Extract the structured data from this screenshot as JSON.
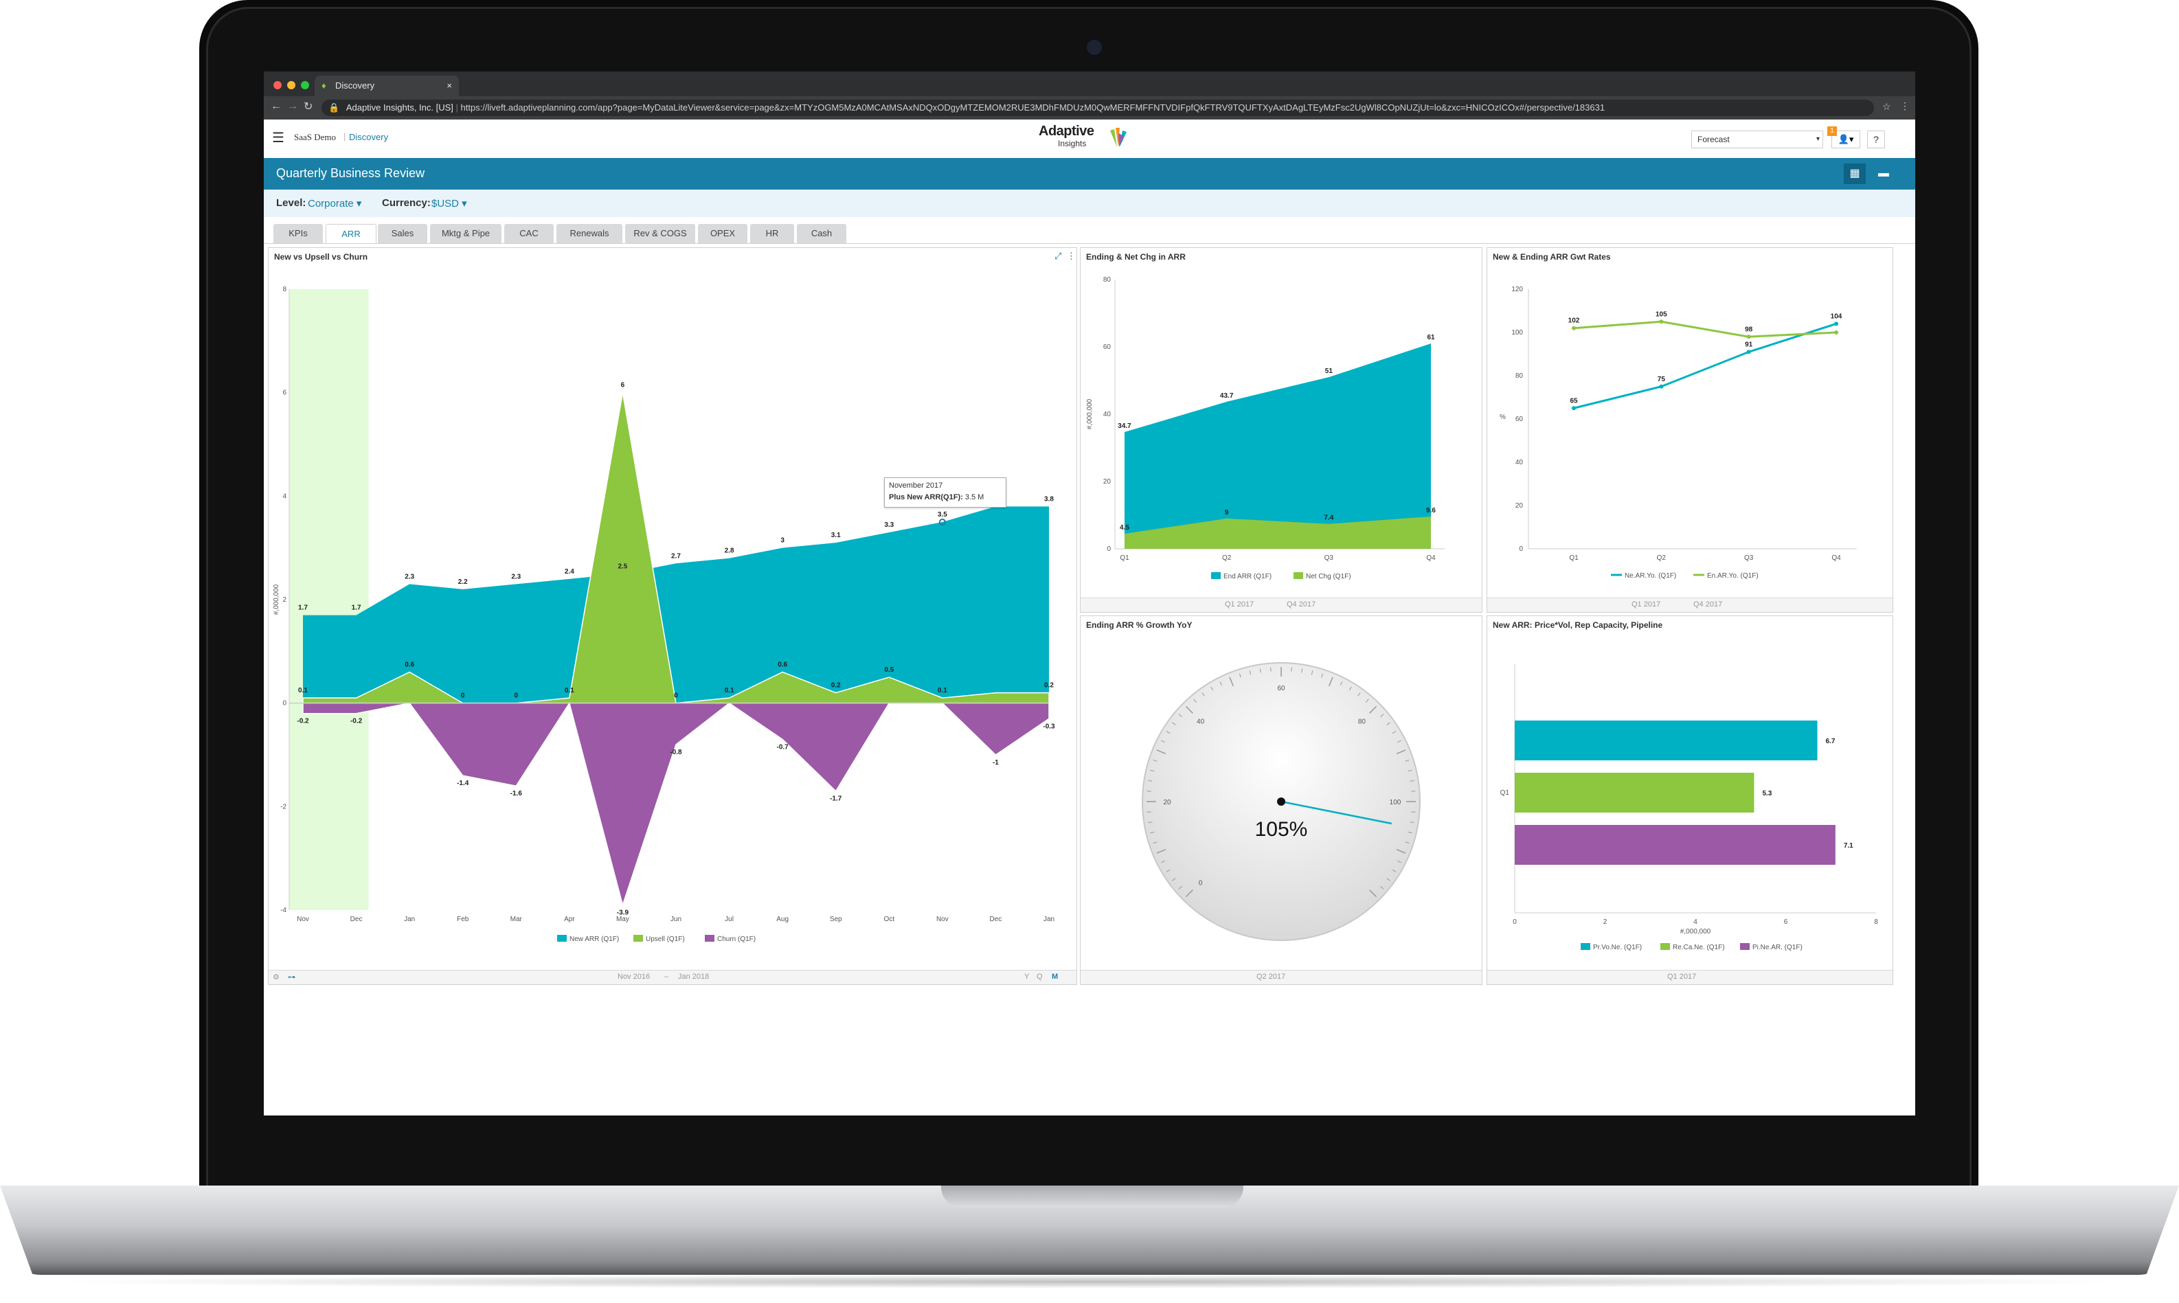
{
  "browser": {
    "tab_title": "Discovery",
    "site_label": "Adaptive Insights, Inc. [US]",
    "url": "https://liveft.adaptiveplanning.com/app?page=MyDataLiteViewer&service=page&zx=MTYzOGM5MzA0MCAtMSAxNDQxODgyMTZEMOM2RUE3MDhFMDUzM0QwMERFMFFNTVDIFpfQkFTRV9TQUFTXyAxtDAgLTEyMzFsc2UgWl8COpNUZjUt=lo&zxc=HNICOzICOx#/perspective/183631",
    "refresh_icon": "refresh-icon",
    "star_icon": "star-icon",
    "menu_icon": "kebab-icon"
  },
  "app": {
    "instance": "SaaS Demo",
    "context": "Discovery",
    "logo_line1": "Adaptive",
    "logo_line2": "Insights",
    "version_select": "Forecast",
    "notification_count": "1",
    "help_label": "?"
  },
  "report": {
    "title": "Quarterly Business Review",
    "level_label": "Level:",
    "level_value": "Corporate",
    "currency_label": "Currency:",
    "currency_value": "$USD"
  },
  "tabs": [
    {
      "label": "KPIs"
    },
    {
      "label": "ARR",
      "active": true
    },
    {
      "label": "Sales"
    },
    {
      "label": "Mktg & Pipe"
    },
    {
      "label": "CAC"
    },
    {
      "label": "Renewals"
    },
    {
      "label": "Rev & COGS"
    },
    {
      "label": "OPEX"
    },
    {
      "label": "HR"
    },
    {
      "label": "Cash"
    }
  ],
  "panels": {
    "main": {
      "title": "New vs Upsell vs Churn",
      "date_from": "Nov 2016",
      "date_to": "Jan 2018",
      "foot_icons": [
        "Y",
        "Q",
        "M"
      ],
      "tooltip_title": "November 2017",
      "tooltip_label": "Plus New ARR(Q1F):",
      "tooltip_value": "3.5 M"
    },
    "ending_net": {
      "title": "Ending & Net Chg in ARR",
      "date_from": "Q1 2017",
      "date_to": "Q4 2017"
    },
    "gwt_rates": {
      "title": "New & Ending ARR Gwt Rates",
      "date_from": "Q1 2017",
      "date_to": "Q4 2017"
    },
    "gauge": {
      "title": "Ending ARR % Growth YoY",
      "date": "Q2 2017"
    },
    "price_vol": {
      "title": "New ARR: Price*Vol, Rep Capacity, Pipeline",
      "date": "Q1 2017"
    }
  },
  "colors": {
    "teal": "#00b0c3",
    "green": "#8dc63f",
    "purple": "#9b59a6",
    "blue": "#1a7fa6"
  },
  "chart_data": [
    {
      "type": "area",
      "title": "New vs Upsell vs Churn",
      "ylabel": "#,000,000",
      "ylim": [
        -4,
        8
      ],
      "yticks": [
        "8",
        "6",
        "4",
        "2",
        "0",
        "-2",
        "-4"
      ],
      "categories": [
        "Nov",
        "Dec",
        "Jan",
        "Feb",
        "Mar",
        "Apr",
        "May",
        "Jun",
        "Jul",
        "Aug",
        "Sep",
        "Oct",
        "Nov",
        "Dec",
        "Jan"
      ],
      "series": [
        {
          "name": "New ARR (Q1F)",
          "values": [
            1.7,
            1.7,
            2.3,
            2.2,
            2.3,
            2.4,
            2.5,
            2.7,
            2.8,
            3,
            3.1,
            3.3,
            3.5,
            3.8,
            3.8
          ],
          "labels": [
            "1.7",
            "1.7",
            "2.3",
            "2.2",
            "2.3",
            "2.4",
            "2.5",
            "2.7",
            "2.8",
            "3",
            "3.1",
            "3.3",
            "3.5",
            "",
            "3.8"
          ]
        },
        {
          "name": "Upsell (Q1F)",
          "values": [
            0.1,
            0.1,
            0.6,
            0,
            0,
            0.1,
            6,
            0,
            0.1,
            0.6,
            0.2,
            0.5,
            0.1,
            0.2,
            0.2
          ],
          "labels": [
            "0.1",
            "",
            "0.6",
            "0",
            "0",
            "0.1",
            "6",
            "0",
            "0.1",
            "0.6",
            "0.2",
            "0.5",
            "0.1",
            "",
            "0.2"
          ]
        },
        {
          "name": "Churn (Q1F)",
          "values": [
            -0.2,
            -0.2,
            0,
            -1.4,
            -1.6,
            0,
            -3.9,
            -0.8,
            0,
            -0.7,
            -1.7,
            0,
            0,
            -1,
            -0.3
          ],
          "labels": [
            "-0.2",
            "-0.2",
            "",
            "-1.4",
            "-1.6",
            "",
            "-3.9",
            "-0.8",
            "",
            "-0.7",
            "-1.7",
            "",
            "",
            "-1",
            "-0.3"
          ]
        }
      ]
    },
    {
      "type": "area",
      "title": "Ending & Net Chg in ARR",
      "ylabel": "#,000,000",
      "ylim": [
        0,
        80
      ],
      "yticks": [
        "80",
        "60",
        "40",
        "20",
        "0"
      ],
      "categories": [
        "Q1",
        "Q2",
        "Q3",
        "Q4"
      ],
      "series": [
        {
          "name": "End ARR (Q1F)",
          "values": [
            34.7,
            43.7,
            51,
            61
          ],
          "labels": [
            "34.7",
            "43.7",
            "51",
            "61"
          ]
        },
        {
          "name": "Net Chg (Q1F)",
          "values": [
            4.5,
            9,
            7.4,
            9.6
          ],
          "labels": [
            "4.5",
            "9",
            "7.4",
            "9.6"
          ]
        }
      ]
    },
    {
      "type": "line",
      "title": "New & Ending ARR Gwt Rates",
      "ylabel": "%",
      "ylim": [
        0,
        120
      ],
      "yticks": [
        "120",
        "100",
        "80",
        "60",
        "40",
        "20",
        "0"
      ],
      "categories": [
        "Q1",
        "Q2",
        "Q3",
        "Q4"
      ],
      "series": [
        {
          "name": "Ne.AR.Yo. (Q1F)",
          "values": [
            65,
            75,
            91,
            104
          ],
          "labels": [
            "65",
            "75",
            "91",
            "104"
          ]
        },
        {
          "name": "En.AR.Yo. (Q1F)",
          "values": [
            102,
            105,
            98,
            100
          ],
          "labels": [
            "102",
            "105",
            "98",
            ""
          ]
        }
      ]
    },
    {
      "type": "gauge",
      "title": "Ending ARR % Growth YoY",
      "value": 105,
      "value_label": "105%",
      "range": [
        0,
        120
      ],
      "ticks": [
        "0",
        "20",
        "40",
        "60",
        "80",
        "100"
      ]
    },
    {
      "type": "bar",
      "title": "New ARR: Price*Vol, Rep Capacity, Pipeline",
      "categories": [
        "Q1"
      ],
      "xlabel": "#,000,000",
      "xlim": [
        0,
        8
      ],
      "xticks": [
        "0",
        "2",
        "4",
        "6",
        "8"
      ],
      "series": [
        {
          "name": "Pr.Vo.Ne. (Q1F)",
          "values": [
            6.7
          ],
          "labels": [
            "6.7"
          ]
        },
        {
          "name": "Re.Ca.Ne. (Q1F)",
          "values": [
            5.3
          ],
          "labels": [
            "5.3"
          ]
        },
        {
          "name": "Pi.Ne.AR. (Q1F)",
          "values": [
            7.1
          ],
          "labels": [
            "7.1"
          ]
        }
      ]
    }
  ]
}
